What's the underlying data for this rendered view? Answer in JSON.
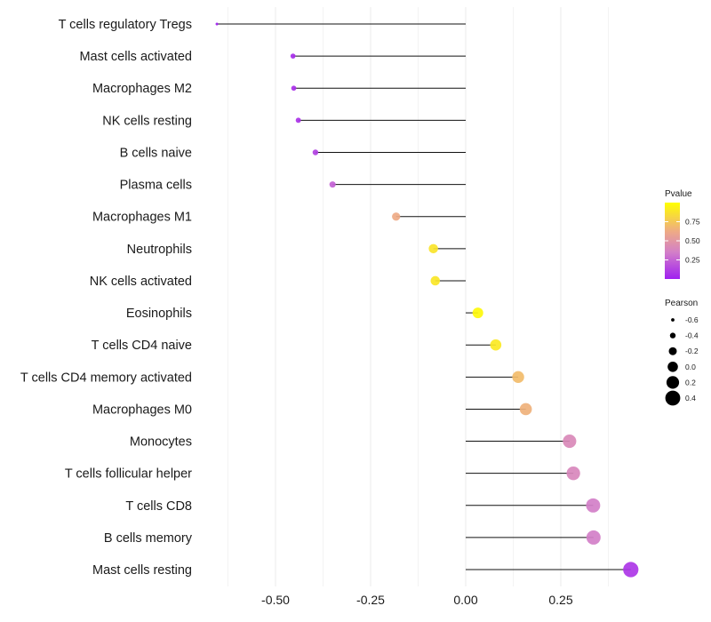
{
  "chart_data": {
    "type": "lollipop",
    "xlabel": "",
    "ylabel": "",
    "xlim": [
      -0.68,
      0.47
    ],
    "x_ticks": [
      -0.5,
      -0.25,
      0.0,
      0.25
    ],
    "x_tick_labels": [
      "-0.50",
      "-0.25",
      "0.00",
      "0.25"
    ],
    "categories": [
      "T cells regulatory  Tregs",
      "Mast cells activated",
      "Macrophages M2",
      "NK cells resting",
      "B cells naive",
      "Plasma cells",
      "Macrophages M1",
      "Neutrophils",
      "NK cells activated",
      "Eosinophils",
      "T cells CD4 naive",
      "T cells CD4 memory activated",
      "Macrophages M0",
      "Monocytes",
      "T cells follicular helper",
      "T cells CD8",
      "B cells memory",
      "Mast cells resting"
    ],
    "pearson": [
      -0.654,
      -0.454,
      -0.452,
      -0.44,
      -0.395,
      -0.35,
      -0.183,
      -0.085,
      -0.08,
      0.032,
      0.079,
      0.138,
      0.158,
      0.273,
      0.283,
      0.335,
      0.336,
      0.434
    ],
    "pvalue": [
      0.003,
      0.05,
      0.06,
      0.07,
      0.12,
      0.24,
      0.62,
      0.88,
      0.89,
      0.97,
      0.9,
      0.7,
      0.65,
      0.41,
      0.4,
      0.35,
      0.35,
      0.08
    ],
    "legend_pvalue": {
      "title": "Pvalue",
      "ticks": [
        0.75,
        0.5,
        0.25
      ],
      "labels": [
        "0.75",
        "0.50",
        "0.25"
      ],
      "range": [
        0.0,
        1.0
      ],
      "colors": [
        "#a020f0",
        "#e9a98a",
        "#ffff00"
      ]
    },
    "legend_pearson": {
      "title": "Pearson",
      "values": [
        -0.6,
        -0.4,
        -0.2,
        0.0,
        0.2,
        0.4
      ],
      "labels": [
        "-0.6",
        "-0.4",
        "-0.2",
        "0.0",
        "0.2",
        "0.4"
      ]
    }
  }
}
